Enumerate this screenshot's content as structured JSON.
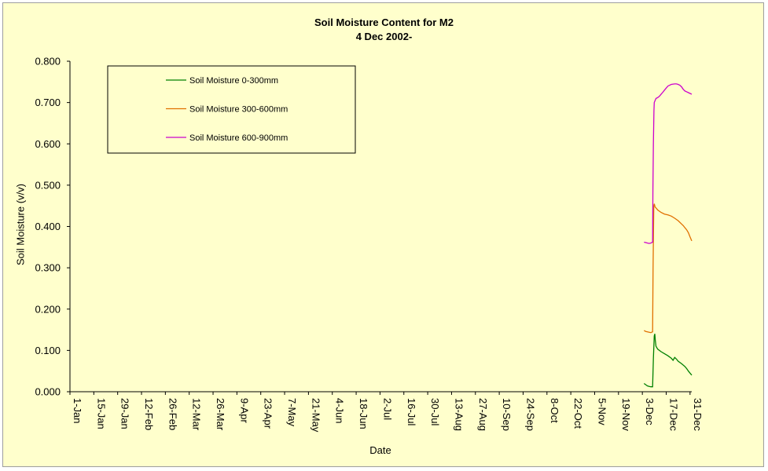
{
  "chart_data": {
    "type": "line",
    "title": "Soil Moisture Content for M2",
    "subtitle": "4 Dec 2002-",
    "xlabel": "Date",
    "ylabel": "Soil Moisture (v/v)",
    "ylim": [
      0,
      0.8
    ],
    "yticks": [
      "0.000",
      "0.100",
      "0.200",
      "0.300",
      "0.400",
      "0.500",
      "0.600",
      "0.700",
      "0.800"
    ],
    "xlim_day": [
      1,
      366
    ],
    "xticks": [
      {
        "label": "1-Jan",
        "day": 1
      },
      {
        "label": "15-Jan",
        "day": 15
      },
      {
        "label": "29-Jan",
        "day": 29
      },
      {
        "label": "12-Feb",
        "day": 43
      },
      {
        "label": "26-Feb",
        "day": 57
      },
      {
        "label": "12-Mar",
        "day": 71
      },
      {
        "label": "26-Mar",
        "day": 85
      },
      {
        "label": "9-Apr",
        "day": 99
      },
      {
        "label": "23-Apr",
        "day": 113
      },
      {
        "label": "7-May",
        "day": 127
      },
      {
        "label": "21-May",
        "day": 141
      },
      {
        "label": "4-Jun",
        "day": 155
      },
      {
        "label": "18-Jun",
        "day": 169
      },
      {
        "label": "2-Jul",
        "day": 183
      },
      {
        "label": "16-Jul",
        "day": 197
      },
      {
        "label": "30-Jul",
        "day": 211
      },
      {
        "label": "13-Aug",
        "day": 225
      },
      {
        "label": "27-Aug",
        "day": 239
      },
      {
        "label": "10-Sep",
        "day": 253
      },
      {
        "label": "24-Sep",
        "day": 267
      },
      {
        "label": "8-Oct",
        "day": 281
      },
      {
        "label": "22-Oct",
        "day": 295
      },
      {
        "label": "5-Nov",
        "day": 309
      },
      {
        "label": "19-Nov",
        "day": 323
      },
      {
        "label": "3-Dec",
        "day": 337
      },
      {
        "label": "17-Dec",
        "day": 351
      },
      {
        "label": "31-Dec",
        "day": 365
      }
    ],
    "legend_position": "upper-left",
    "series": [
      {
        "name": "Soil Moisture 0-300mm",
        "color": "#008000",
        "x": [
          338,
          339,
          340,
          341,
          342,
          343,
          343.5,
          344,
          344.3,
          344.6,
          345,
          346,
          348,
          350,
          352,
          354,
          355,
          356,
          357,
          358,
          360,
          362,
          363,
          364,
          365,
          366
        ],
        "y": [
          0.02,
          0.017,
          0.014,
          0.013,
          0.012,
          0.012,
          0.08,
          0.135,
          0.14,
          0.125,
          0.11,
          0.103,
          0.097,
          0.092,
          0.087,
          0.081,
          0.076,
          0.083,
          0.079,
          0.074,
          0.068,
          0.061,
          0.056,
          0.05,
          0.045,
          0.04
        ]
      },
      {
        "name": "Soil Moisture 300-600mm",
        "color": "#e07000",
        "x": [
          338,
          339,
          340,
          341,
          342,
          343,
          343.3,
          343.7,
          344,
          344.5,
          345,
          346,
          348,
          350,
          352,
          354,
          356,
          358,
          360,
          361,
          362,
          363,
          364,
          365,
          366
        ],
        "y": [
          0.148,
          0.146,
          0.145,
          0.144,
          0.143,
          0.145,
          0.3,
          0.45,
          0.455,
          0.447,
          0.445,
          0.44,
          0.434,
          0.43,
          0.428,
          0.425,
          0.42,
          0.414,
          0.406,
          0.402,
          0.397,
          0.392,
          0.385,
          0.375,
          0.365
        ]
      },
      {
        "name": "Soil Moisture 600-900mm",
        "color": "#cc00cc",
        "x": [
          338,
          339,
          340,
          341,
          342,
          343,
          343.2,
          343.5,
          343.8,
          344,
          344.5,
          345,
          346,
          347,
          348,
          349,
          350,
          351,
          352,
          354,
          356,
          357,
          358,
          359,
          360,
          361,
          362,
          363,
          364,
          365,
          366
        ],
        "y": [
          0.362,
          0.361,
          0.36,
          0.359,
          0.36,
          0.362,
          0.49,
          0.6,
          0.68,
          0.7,
          0.705,
          0.71,
          0.712,
          0.715,
          0.72,
          0.725,
          0.73,
          0.735,
          0.74,
          0.744,
          0.745,
          0.745,
          0.744,
          0.742,
          0.738,
          0.732,
          0.728,
          0.726,
          0.724,
          0.722,
          0.72
        ]
      }
    ]
  }
}
